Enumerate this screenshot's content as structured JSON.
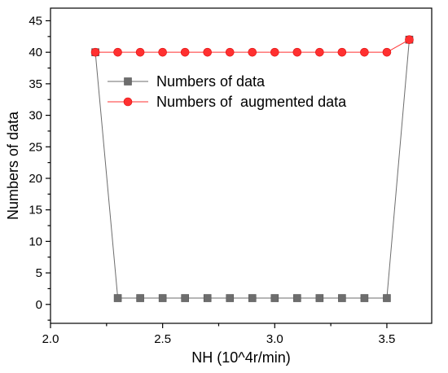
{
  "chart_data": {
    "type": "line",
    "xlabel": "NH (10^4r/min)",
    "ylabel": "Numbers of data",
    "xlim": [
      2.0,
      3.7
    ],
    "ylim": [
      -3,
      47
    ],
    "x_ticks": [
      "2.0",
      "2.5",
      "3.0",
      "3.5"
    ],
    "x_tick_values": [
      2.0,
      2.5,
      3.0,
      3.5
    ],
    "y_ticks": [
      "0",
      "5",
      "10",
      "15",
      "20",
      "25",
      "30",
      "35",
      "40",
      "45"
    ],
    "y_tick_values": [
      0,
      5,
      10,
      15,
      20,
      25,
      30,
      35,
      40,
      45
    ],
    "legend_position": "upper-center",
    "grid": false,
    "series": [
      {
        "name": "Numbers of data",
        "marker": "square",
        "color": "#6d6d6d",
        "x": [
          2.2,
          2.3,
          2.4,
          2.5,
          2.6,
          2.7,
          2.8,
          2.9,
          3.0,
          3.1,
          3.2,
          3.3,
          3.4,
          3.5,
          3.6
        ],
        "values": [
          40,
          1,
          1,
          1,
          1,
          1,
          1,
          1,
          1,
          1,
          1,
          1,
          1,
          1,
          42
        ]
      },
      {
        "name": "Numbers of  augmented data",
        "marker": "circle",
        "color": "#ff3030",
        "x": [
          2.2,
          2.3,
          2.4,
          2.5,
          2.6,
          2.7,
          2.8,
          2.9,
          3.0,
          3.1,
          3.2,
          3.3,
          3.4,
          3.5,
          3.6
        ],
        "values": [
          40,
          40,
          40,
          40,
          40,
          40,
          40,
          40,
          40,
          40,
          40,
          40,
          40,
          40,
          42
        ]
      }
    ]
  }
}
